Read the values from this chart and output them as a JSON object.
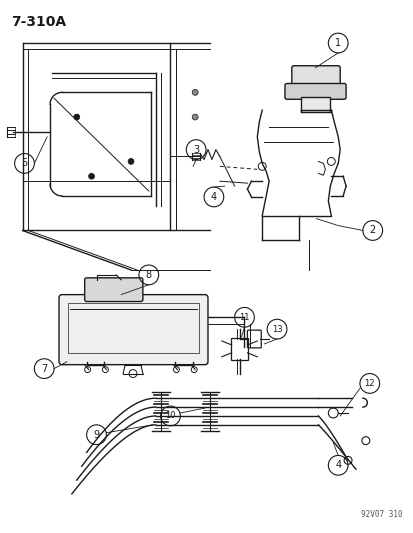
{
  "title": "7-310A",
  "footer": "92V07 310",
  "bg_color": "#ffffff",
  "line_color": "#1a1a1a",
  "title_fontsize": 10,
  "label_fontsize": 7,
  "footer_fontsize": 5.5
}
